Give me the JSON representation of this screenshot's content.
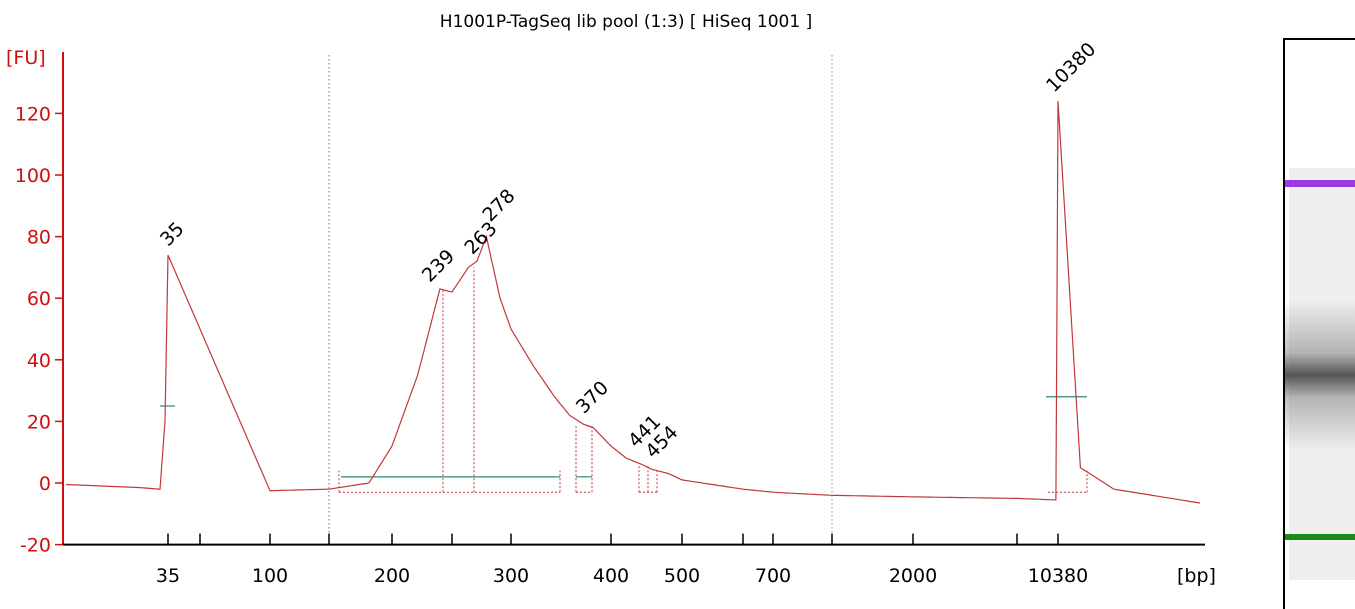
{
  "title": "H1001P-TagSeq lib pool (1:3)  [ HiSeq 1001 ]",
  "colors": {
    "axis": "#d01010",
    "trace": "#c03838",
    "baseline": "#2a8a7a",
    "marker_lower": "#1a8a1a",
    "marker_upper": "#9a3ae0",
    "window_line": "#5a6ad0"
  },
  "chart_data": {
    "type": "line",
    "title": "H1001P-TagSeq lib pool (1:3)  [ HiSeq 1001 ]",
    "xlabel": "[bp]",
    "ylabel": "[FU]",
    "ylim": [
      -20,
      130
    ],
    "yticks": [
      -20,
      0,
      20,
      40,
      60,
      80,
      100,
      120
    ],
    "xtick_labels": [
      "35",
      "100",
      "200",
      "300",
      "400",
      "500",
      "700",
      "2000",
      "10380"
    ],
    "x_scale": "ladder (non-linear, size in bp)",
    "series": [
      {
        "name": "",
        "x_bp": [
          35,
          100,
          150,
          180,
          200,
          220,
          239,
          250,
          263,
          270,
          278,
          290,
          300,
          320,
          340,
          355,
          370,
          380,
          400,
          420,
          441,
          454,
          480,
          500,
          600,
          700,
          1000,
          2000,
          5000,
          10000,
          10380,
          11000,
          12000,
          15000
        ],
        "y_fu": [
          74,
          -2.5,
          -2,
          0,
          12,
          35,
          63,
          62,
          70,
          72,
          80,
          60,
          50,
          38,
          28,
          22,
          19,
          18,
          12,
          8,
          6,
          4.5,
          3,
          1,
          -2,
          -3,
          -4,
          -4.5,
          -5,
          -5.5,
          124,
          5,
          -2,
          -6.5
        ]
      }
    ],
    "peaks": [
      {
        "label": "35",
        "size_bp": 35,
        "fu": 74,
        "role": "lower_marker"
      },
      {
        "label": "239",
        "size_bp": 239,
        "fu": 63
      },
      {
        "label": "263",
        "size_bp": 263,
        "fu": 70
      },
      {
        "label": "278",
        "size_bp": 278,
        "fu": 80
      },
      {
        "label": "370",
        "size_bp": 370,
        "fu": 19
      },
      {
        "label": "441",
        "size_bp": 441,
        "fu": 6
      },
      {
        "label": "454",
        "size_bp": 454,
        "fu": 4.5
      },
      {
        "label": "10380",
        "size_bp": 10380,
        "fu": 124,
        "role": "upper_marker"
      }
    ],
    "grid": false,
    "legend": "none"
  },
  "gel_lane": {
    "bands": [
      {
        "role": "upper_marker",
        "color": "#9a3ae0"
      },
      {
        "role": "smear",
        "color": "#555555"
      },
      {
        "role": "lower_marker",
        "color": "#1a8a1a"
      }
    ]
  }
}
